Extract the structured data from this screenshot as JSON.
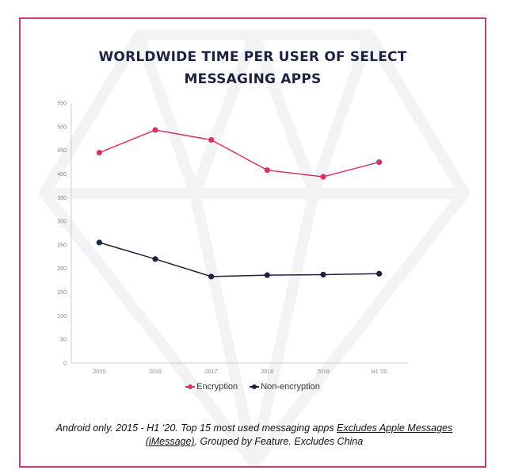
{
  "colors": {
    "border": "#c93b79",
    "title": "#1c2340",
    "encryption": "#d6336c",
    "non_encryption": "#1c2340",
    "grid_axis": "#cccccc",
    "tick_text": "#888888"
  },
  "chart_data": {
    "type": "line",
    "title": [
      "WORLDWIDE TIME PER USER OF SELECT",
      "MESSAGING APPS"
    ],
    "xlabel": "",
    "ylabel": "",
    "categories": [
      "2015",
      "2016",
      "2017",
      "2018",
      "2019",
      "H1 '20"
    ],
    "y_ticks": [
      0,
      50,
      100,
      150,
      200,
      250,
      300,
      350,
      400,
      450,
      500,
      550
    ],
    "ylim": [
      0,
      550
    ],
    "grid": false,
    "legend_position": "bottom-center",
    "series": [
      {
        "name": "Encryption",
        "color": "#d6336c",
        "values": [
          445,
          493,
          472,
          408,
          394,
          425
        ]
      },
      {
        "name": "Non-encryption",
        "color": "#1c2340",
        "values": [
          255,
          220,
          183,
          186,
          187,
          189
        ]
      }
    ]
  },
  "footnote": {
    "part1": "Android only. 2015 - H1 ‘20. Top 15 most used messaging apps ",
    "link1": "Excludes Apple Messages (iMessage)",
    "part2": ". Grouped by Feature. Excludes China"
  }
}
